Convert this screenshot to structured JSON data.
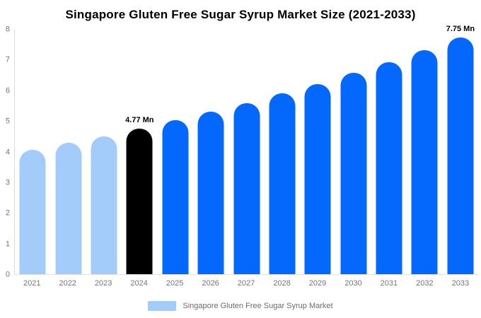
{
  "chart_data": {
    "type": "bar",
    "title": "Singapore Gluten Free Sugar Syrup Market Size (2021-2033)",
    "categories": [
      "2021",
      "2022",
      "2023",
      "2024",
      "2025",
      "2026",
      "2027",
      "2028",
      "2029",
      "2030",
      "2031",
      "2032",
      "2033"
    ],
    "values": [
      4.06,
      4.29,
      4.52,
      4.77,
      5.03,
      5.31,
      5.6,
      5.91,
      6.23,
      6.58,
      6.94,
      7.32,
      7.75
    ],
    "unit": "Mn",
    "annotations": [
      {
        "category": "2024",
        "text": "4.77 Mn"
      },
      {
        "category": "2033",
        "text": "7.75 Mn"
      }
    ],
    "bar_color_keys": [
      "light",
      "light",
      "light",
      "black",
      "blue",
      "blue",
      "blue",
      "blue",
      "blue",
      "blue",
      "blue",
      "blue",
      "blue"
    ],
    "colors": {
      "light": "#a3ccfa",
      "blue": "#0568fd",
      "black": "#000000"
    },
    "xlabel": "",
    "ylabel": "",
    "ylim": [
      0,
      8
    ],
    "y_ticks": [
      0,
      1,
      2,
      3,
      4,
      5,
      6,
      7,
      8
    ],
    "grid": false,
    "legend": {
      "position": "bottom",
      "entries": [
        "Singapore Gluten Free Sugar Syrup Market"
      ]
    }
  },
  "legend": {
    "label": "Singapore Gluten Free Sugar Syrup Market",
    "swatch_color": "#a3ccfa"
  },
  "axis": {
    "line_color": "#d9d9d9",
    "tick_text_color": "#757575"
  }
}
